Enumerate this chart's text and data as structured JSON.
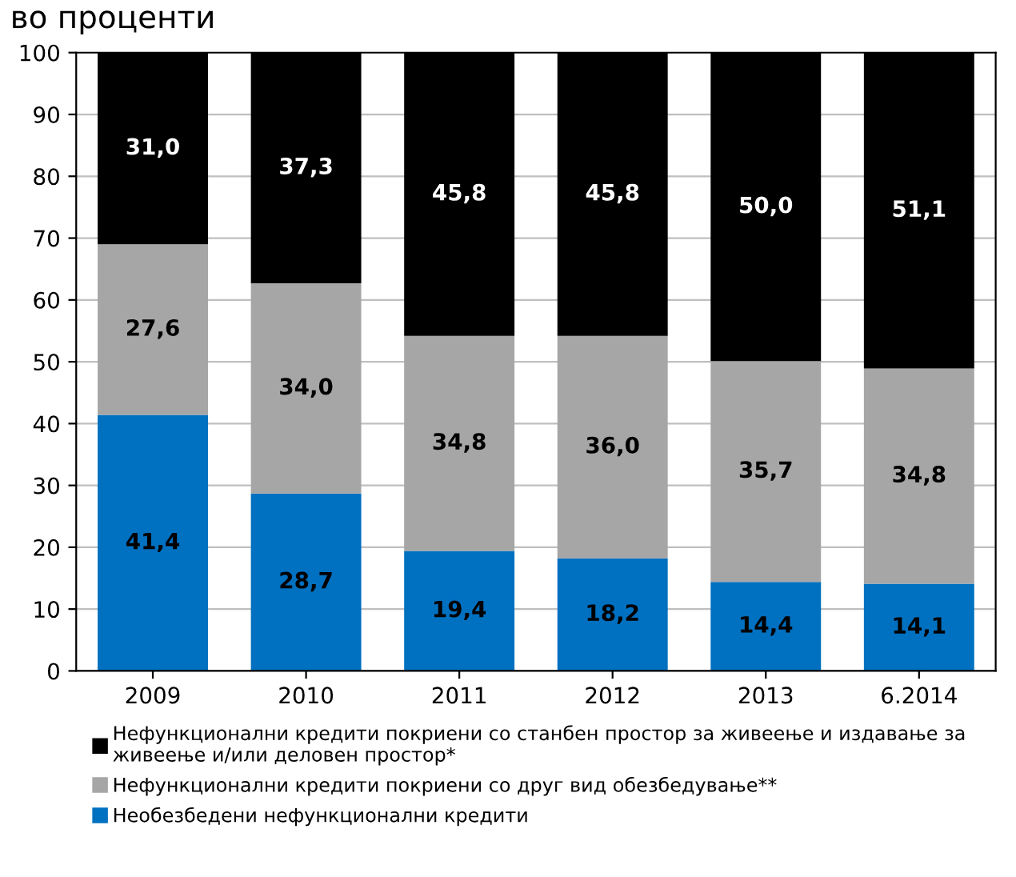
{
  "chart_data": {
    "type": "bar",
    "title": "во проценти",
    "stacked": true,
    "categories": [
      "2009",
      "2010",
      "2011",
      "2012",
      "2013",
      "6.2014"
    ],
    "series": [
      {
        "name": "Необезбедени нефункционални кредити",
        "color": "#0070c0",
        "values": [
          41.4,
          28.7,
          19.4,
          18.2,
          14.4,
          14.1
        ],
        "value_labels": [
          "41,4",
          "28,7",
          "19,4",
          "18,2",
          "14,4",
          "14,1"
        ]
      },
      {
        "name": "Нефункционални кредити покриени со друг вид обезбедување**",
        "color": "#a6a6a6",
        "values": [
          27.6,
          34.0,
          34.8,
          36.0,
          35.7,
          34.8
        ],
        "value_labels": [
          "27,6",
          "34,0",
          "34,8",
          "36,0",
          "35,7",
          "34,8"
        ]
      },
      {
        "name": "Нефункционални кредити покриени со станбен простор за живеење и издавање за живеење и/или деловен простор*",
        "color": "#000000",
        "values": [
          31.0,
          37.3,
          45.8,
          45.8,
          50.0,
          51.1
        ],
        "value_labels": [
          "31,0",
          "37,3",
          "45,8",
          "45,8",
          "50,0",
          "51,1"
        ]
      }
    ],
    "ylim": [
      0,
      100
    ],
    "yticks": [
      0,
      10,
      20,
      30,
      40,
      50,
      60,
      70,
      80,
      90,
      100
    ],
    "grid": "y",
    "legend": "bottom"
  }
}
